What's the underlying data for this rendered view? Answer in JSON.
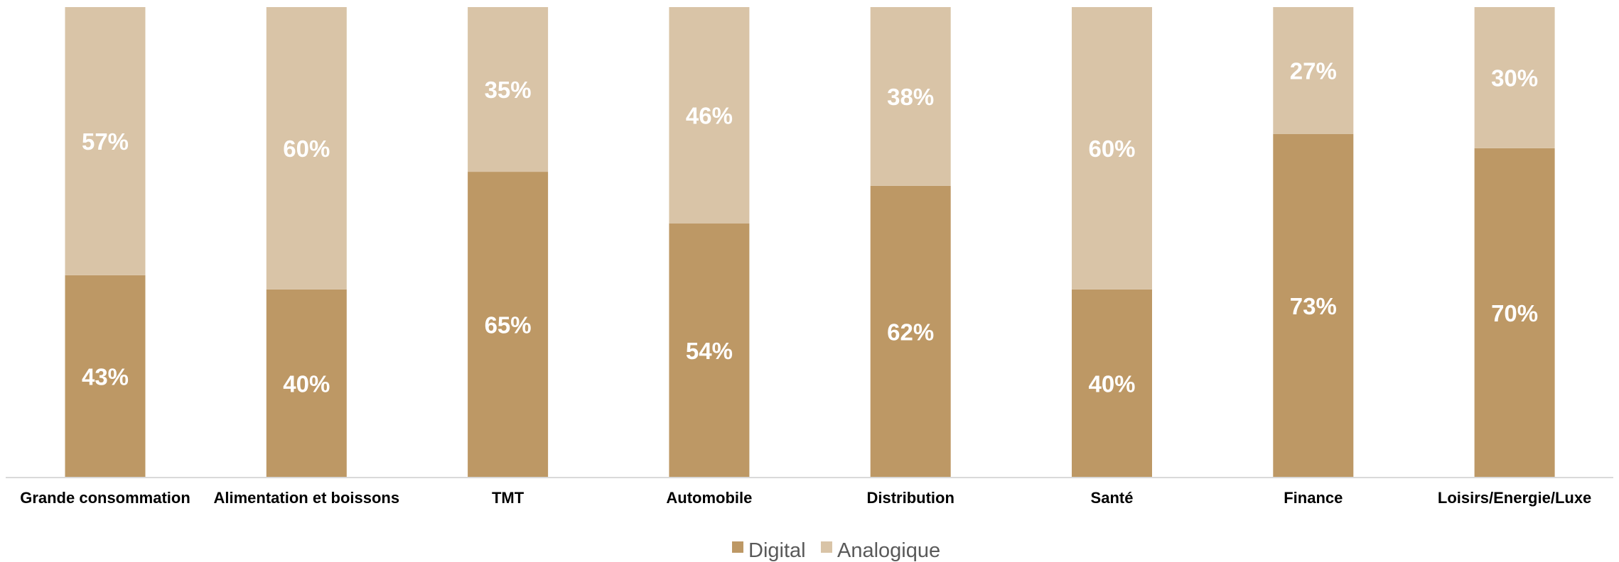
{
  "chart_data": {
    "type": "bar",
    "stacked": true,
    "percent_stacked": true,
    "categories": [
      "Grande consommation",
      "Alimentation et boissons",
      "TMT",
      "Automobile",
      "Distribution",
      "Santé",
      "Finance",
      "Loisirs/Energie/Luxe"
    ],
    "series": [
      {
        "name": "Digital",
        "values": [
          43,
          40,
          65,
          54,
          62,
          40,
          73,
          70
        ],
        "labels": [
          "43%",
          "40%",
          "65%",
          "54%",
          "62%",
          "40%",
          "73%",
          "70%"
        ],
        "color": "#bd9865"
      },
      {
        "name": "Analogique",
        "values": [
          57,
          60,
          35,
          46,
          38,
          60,
          27,
          30
        ],
        "labels": [
          "57%",
          "60%",
          "35%",
          "46%",
          "38%",
          "60%",
          "27%",
          "30%"
        ],
        "color": "#d9c4a7"
      }
    ],
    "ylim": [
      0,
      100
    ],
    "grid": false,
    "legend_position": "bottom",
    "axis_color": "#d9d9d9"
  }
}
